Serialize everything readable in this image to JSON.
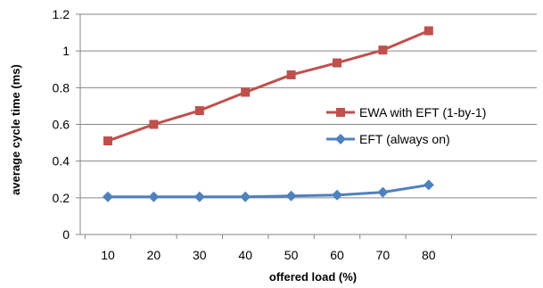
{
  "chart_data": {
    "type": "line",
    "title": "",
    "xlabel": "offered load (%)",
    "ylabel": "average cycle time (ms)",
    "x": [
      10,
      20,
      30,
      40,
      50,
      60,
      70,
      80
    ],
    "ylim": [
      0,
      1.2
    ],
    "yticks": [
      0,
      0.2,
      0.4,
      0.6,
      0.8,
      1,
      1.2
    ],
    "ytick_labels": [
      "0",
      "0.2",
      "0.4",
      "0.6",
      "0.8",
      "1",
      "1.2"
    ],
    "xtick_labels": [
      "10",
      "20",
      "30",
      "40",
      "50",
      "60",
      "70",
      "80"
    ],
    "grid": "horizontal",
    "legend_position": "right-center",
    "series": [
      {
        "name": "EWA with EFT (1-by-1)",
        "color": "#C0504D",
        "marker": "square",
        "values": [
          0.51,
          0.6,
          0.675,
          0.775,
          0.87,
          0.935,
          1.005,
          1.11
        ]
      },
      {
        "name": "EFT (always on)",
        "color": "#4F81BD",
        "marker": "diamond",
        "values": [
          0.205,
          0.205,
          0.205,
          0.205,
          0.21,
          0.215,
          0.23,
          0.27
        ]
      }
    ]
  }
}
